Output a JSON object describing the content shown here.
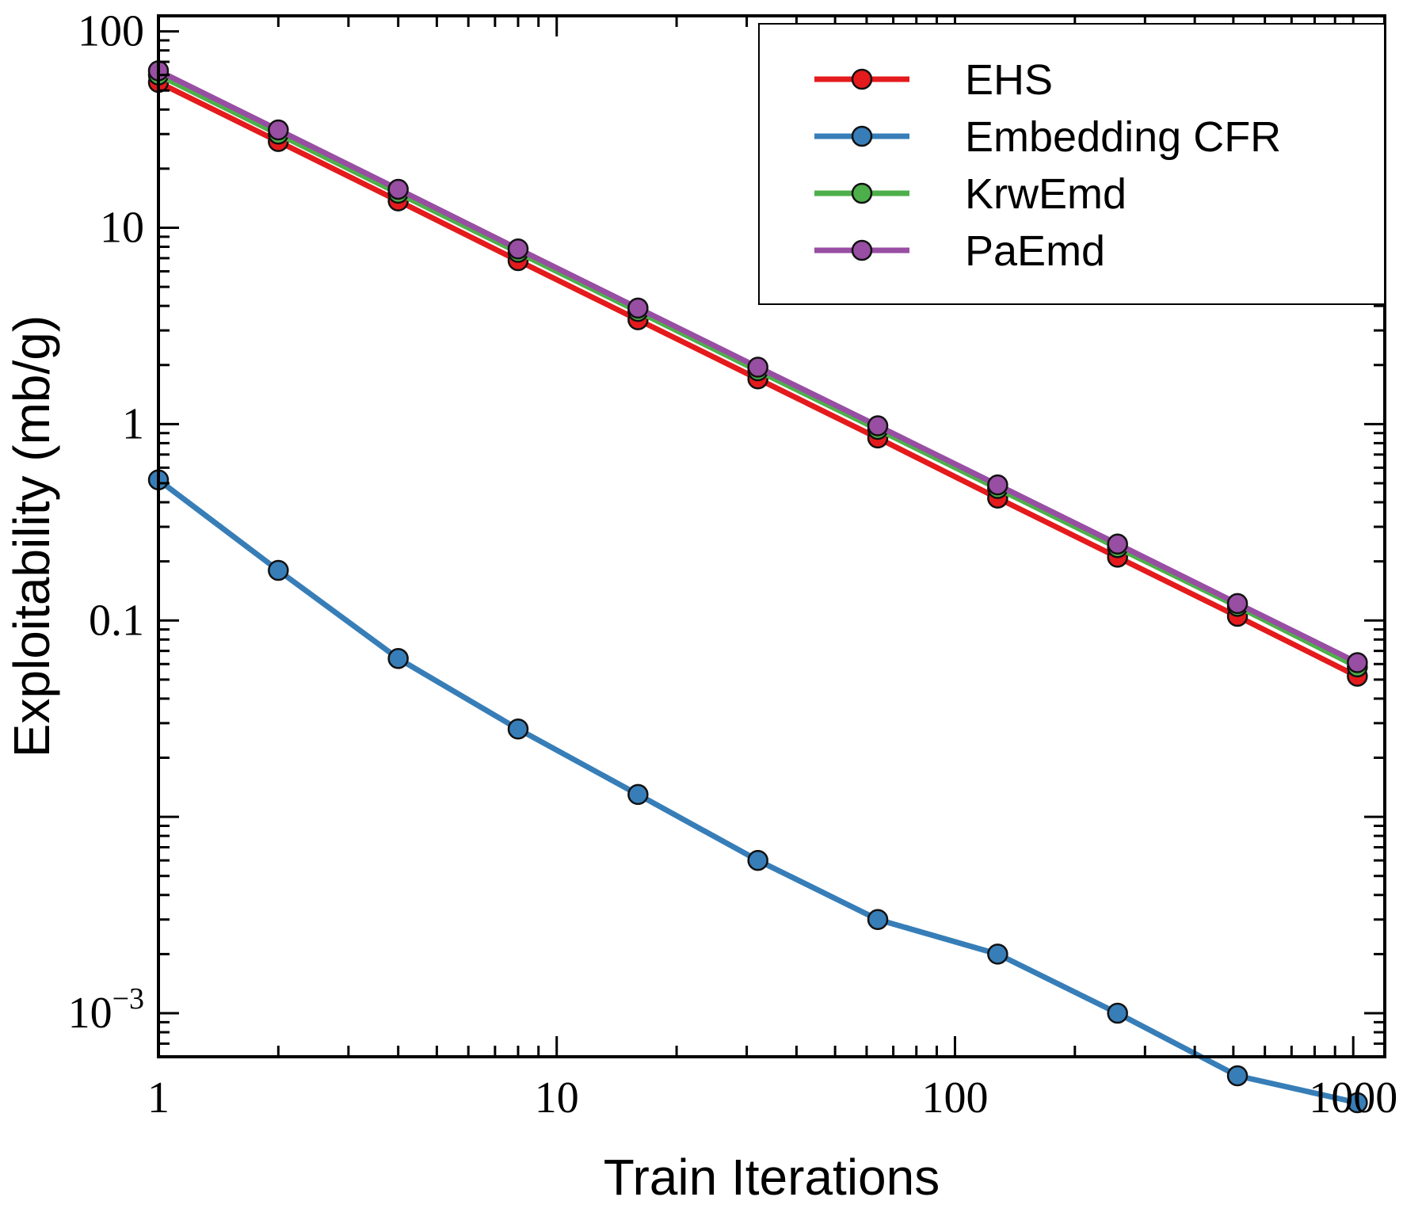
{
  "chart_data": {
    "type": "line",
    "xscale": "log",
    "yscale": "log",
    "xlabel": "Train Iterations",
    "ylabel": "Exploitability (mb/g)",
    "xlim": [
      1,
      1200
    ],
    "ylim": [
      0.0006,
      120
    ],
    "x_tick_labels": [
      {
        "value": 1,
        "label": "1"
      },
      {
        "value": 10,
        "label": "10"
      },
      {
        "value": 100,
        "label": "100"
      },
      {
        "value": 1000,
        "label": "1000"
      }
    ],
    "y_tick_labels": [
      {
        "value": 100,
        "label": "100"
      },
      {
        "value": 10,
        "label": "10"
      },
      {
        "value": 1,
        "label": "1"
      },
      {
        "value": 0.1,
        "label": "0.1"
      },
      {
        "value": 0.001,
        "base": "10",
        "exponent": "−3"
      }
    ],
    "grid": false,
    "legend": "top-right",
    "x": [
      1,
      2,
      4,
      8,
      16,
      32,
      64,
      128,
      256,
      512,
      1024
    ],
    "series": [
      {
        "name": "EHS",
        "color": "#e41a1c",
        "values": [
          55,
          27.5,
          13.7,
          6.8,
          3.4,
          1.7,
          0.85,
          0.42,
          0.21,
          0.105,
          0.052
        ]
      },
      {
        "name": "Embedding CFR",
        "color": "#377eb8",
        "values": [
          0.52,
          0.18,
          0.064,
          0.028,
          0.013,
          0.006,
          0.003,
          0.002,
          0.001,
          0.00048,
          0.00035
        ]
      },
      {
        "name": "KrwEmd",
        "color": "#4daf4a",
        "values": [
          60,
          30,
          15,
          7.5,
          3.75,
          1.87,
          0.94,
          0.47,
          0.235,
          0.118,
          0.058
        ]
      },
      {
        "name": "PaEmd",
        "color": "#984ea3",
        "values": [
          63,
          31.5,
          15.7,
          7.8,
          3.9,
          1.95,
          0.98,
          0.49,
          0.245,
          0.122,
          0.061
        ]
      }
    ]
  }
}
